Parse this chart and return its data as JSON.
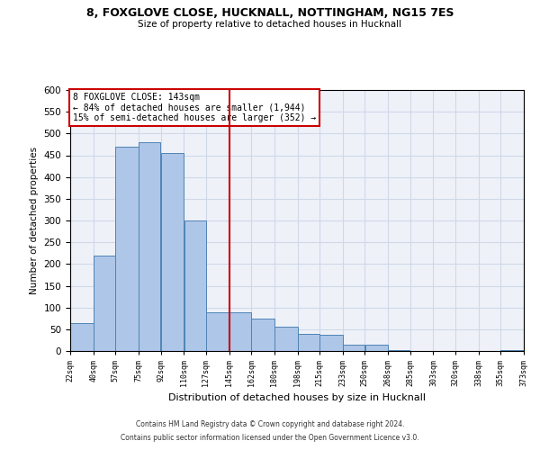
{
  "title1": "8, FOXGLOVE CLOSE, HUCKNALL, NOTTINGHAM, NG15 7ES",
  "title2": "Size of property relative to detached houses in Hucknall",
  "xlabel": "Distribution of detached houses by size in Hucknall",
  "ylabel": "Number of detached properties",
  "footnote1": "Contains HM Land Registry data © Crown copyright and database right 2024.",
  "footnote2": "Contains public sector information licensed under the Open Government Licence v3.0.",
  "bar_left_edges": [
    22,
    40,
    57,
    75,
    92,
    110,
    127,
    145,
    162,
    180,
    198,
    215,
    233,
    250,
    268,
    285,
    303,
    320,
    338,
    355
  ],
  "bar_widths": [
    18,
    17,
    18,
    17,
    18,
    17,
    18,
    17,
    18,
    18,
    17,
    18,
    17,
    18,
    17,
    18,
    17,
    18,
    17,
    18
  ],
  "bar_heights": [
    65,
    220,
    470,
    480,
    455,
    300,
    90,
    90,
    75,
    55,
    40,
    38,
    15,
    15,
    2,
    0,
    0,
    0,
    0,
    2
  ],
  "bar_color": "#aec6e8",
  "bar_edge_color": "#4f84b5",
  "grid_color": "#d0d8e8",
  "background_color": "#eef2f8",
  "property_line_x": 145,
  "property_sqm": 143,
  "pct_smaller": 84,
  "count_smaller": 1944,
  "pct_larger_semi": 15,
  "count_larger_semi": 352,
  "annotation_box_color": "#ffffff",
  "annotation_edge_color": "#cc0000",
  "vline_color": "#cc0000",
  "ylim": [
    0,
    600
  ],
  "yticks": [
    0,
    50,
    100,
    150,
    200,
    250,
    300,
    350,
    400,
    450,
    500,
    550,
    600
  ],
  "tick_labels": [
    "22sqm",
    "40sqm",
    "57sqm",
    "75sqm",
    "92sqm",
    "110sqm",
    "127sqm",
    "145sqm",
    "162sqm",
    "180sqm",
    "198sqm",
    "215sqm",
    "233sqm",
    "250sqm",
    "268sqm",
    "285sqm",
    "303sqm",
    "320sqm",
    "338sqm",
    "355sqm",
    "373sqm"
  ]
}
